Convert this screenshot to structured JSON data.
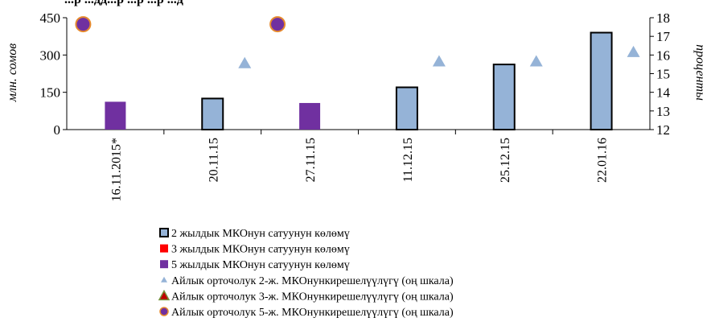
{
  "chart_data": {
    "type": "bar",
    "title": "...р ...дд...р ...р ...р ...д",
    "categories": [
      "16.11.2015*",
      "20.11.15",
      "27.11.15",
      "11.12.15",
      "25.12.15",
      "22.01.16"
    ],
    "ylabel": "млн. сомов",
    "y2label": "проценты",
    "ylim": [
      0,
      450
    ],
    "yticks": [
      0,
      150,
      300,
      450
    ],
    "y2lim": [
      12,
      18
    ],
    "y2ticks": [
      12,
      13,
      14,
      15,
      16,
      17,
      18
    ],
    "series": [
      {
        "name": "2 жылдык МКОнун сатуунун көлөмү",
        "kind": "bar",
        "axis": "left",
        "color": "#95b3d7",
        "border": "#000000",
        "values": [
          null,
          125,
          null,
          170,
          262,
          390
        ]
      },
      {
        "name": "3 жылдык МКОнун сатуунун көлөмү",
        "kind": "bar",
        "axis": "left",
        "color": "#ff0000",
        "values": [
          null,
          null,
          null,
          null,
          null,
          null
        ]
      },
      {
        "name": "5 жылдык МКОнун сатуунун көлөмү",
        "kind": "bar",
        "axis": "left",
        "color": "#7030a0",
        "values": [
          112,
          null,
          107,
          null,
          null,
          null
        ]
      },
      {
        "name": "Айлык орточолук 2-ж. МКОнункирешелүүлүгү (оң шкала)",
        "kind": "marker",
        "marker": "triangle",
        "axis": "right",
        "color": "#95b3d7",
        "values": [
          null,
          15.55,
          null,
          15.65,
          15.65,
          16.15
        ]
      },
      {
        "name": "Айлык орточолук 3-ж. МКОнункирешелүүлүгү (оң шкала)",
        "kind": "marker",
        "marker": "triangle",
        "axis": "right",
        "color": "#c00000",
        "values": [
          null,
          null,
          null,
          null,
          null,
          null
        ]
      },
      {
        "name": "Айлык орточолук 5-ж. МКОнункирешелүүлүгү (оң шкала)",
        "kind": "marker",
        "marker": "circle",
        "axis": "right",
        "color": "#7030a0",
        "values": [
          17.65,
          null,
          17.65,
          null,
          null,
          null
        ]
      }
    ],
    "legend_position": "bottom",
    "grid": false
  }
}
